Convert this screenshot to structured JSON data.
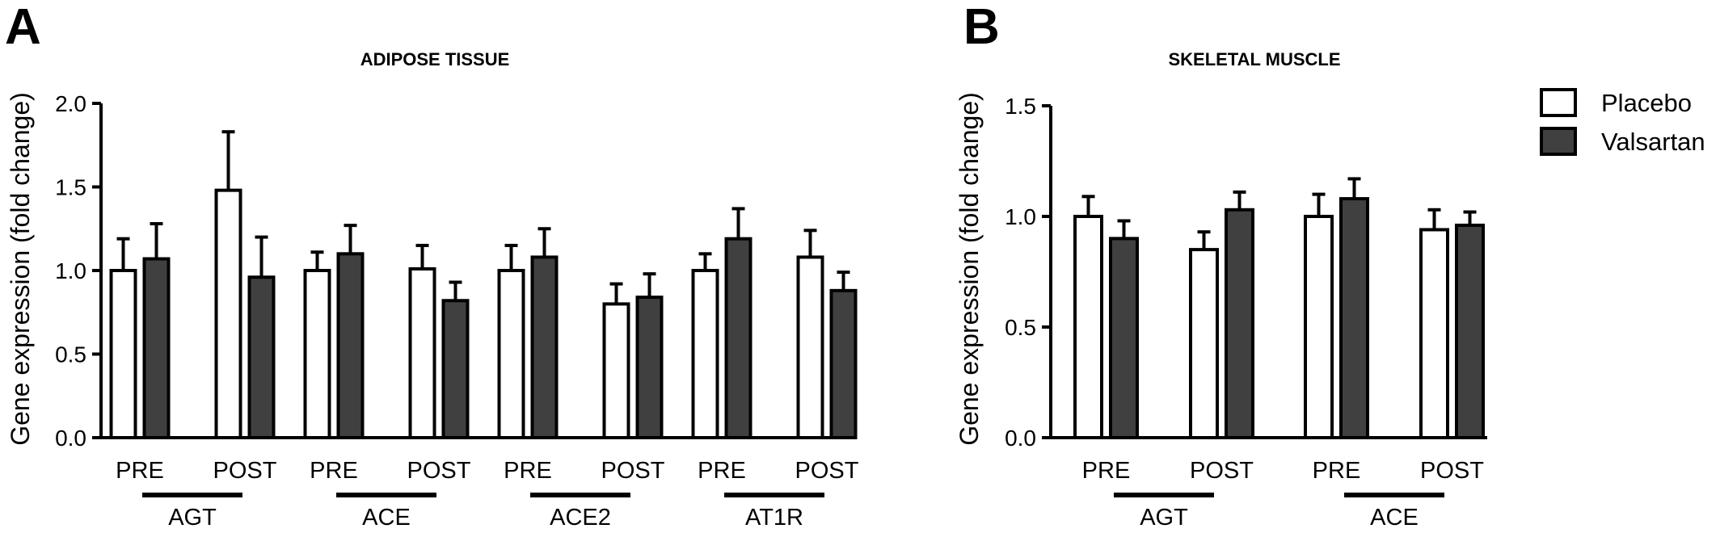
{
  "colors": {
    "placebo": "#ffffff",
    "valsartan": "#404040",
    "stroke": "#000000"
  },
  "legend": {
    "placement": "top-right",
    "items": [
      {
        "label": "Placebo",
        "color": "#ffffff"
      },
      {
        "label": "Valsartan",
        "color": "#404040"
      }
    ]
  },
  "chart_data": [
    {
      "type": "bar",
      "panel": "A",
      "title": "ADIPOSE TISSUE",
      "ylabel": "Gene expression (fold change)",
      "ylim": [
        0,
        2.0
      ],
      "yticks": [
        "0.0",
        "0.5",
        "1.0",
        "1.5",
        "2.0"
      ],
      "error_bars": "upper",
      "groups": [
        {
          "gene": "AGT",
          "timepoints": [
            {
              "label": "PRE",
              "placebo": {
                "value": 1.0,
                "error": 0.19
              },
              "valsartan": {
                "value": 1.07,
                "error": 0.21
              }
            },
            {
              "label": "POST",
              "placebo": {
                "value": 1.48,
                "error": 0.35
              },
              "valsartan": {
                "value": 0.96,
                "error": 0.24
              }
            }
          ]
        },
        {
          "gene": "ACE",
          "timepoints": [
            {
              "label": "PRE",
              "placebo": {
                "value": 1.0,
                "error": 0.11
              },
              "valsartan": {
                "value": 1.1,
                "error": 0.17
              }
            },
            {
              "label": "POST",
              "placebo": {
                "value": 1.01,
                "error": 0.14
              },
              "valsartan": {
                "value": 0.82,
                "error": 0.11
              }
            }
          ]
        },
        {
          "gene": "ACE2",
          "timepoints": [
            {
              "label": "PRE",
              "placebo": {
                "value": 1.0,
                "error": 0.15
              },
              "valsartan": {
                "value": 1.08,
                "error": 0.17
              }
            },
            {
              "label": "POST",
              "placebo": {
                "value": 0.8,
                "error": 0.12
              },
              "valsartan": {
                "value": 0.84,
                "error": 0.14
              }
            }
          ]
        },
        {
          "gene": "AT1R",
          "timepoints": [
            {
              "label": "PRE",
              "placebo": {
                "value": 1.0,
                "error": 0.1
              },
              "valsartan": {
                "value": 1.19,
                "error": 0.18
              }
            },
            {
              "label": "POST",
              "placebo": {
                "value": 1.08,
                "error": 0.16
              },
              "valsartan": {
                "value": 0.88,
                "error": 0.11
              }
            }
          ]
        }
      ]
    },
    {
      "type": "bar",
      "panel": "B",
      "title": "SKELETAL MUSCLE",
      "ylabel": "Gene expression (fold change)",
      "ylim": [
        0,
        1.5
      ],
      "yticks": [
        "0.0",
        "0.5",
        "1.0",
        "1.5"
      ],
      "error_bars": "upper",
      "groups": [
        {
          "gene": "AGT",
          "timepoints": [
            {
              "label": "PRE",
              "placebo": {
                "value": 1.0,
                "error": 0.09
              },
              "valsartan": {
                "value": 0.9,
                "error": 0.08
              }
            },
            {
              "label": "POST",
              "placebo": {
                "value": 0.85,
                "error": 0.08
              },
              "valsartan": {
                "value": 1.03,
                "error": 0.08
              }
            }
          ]
        },
        {
          "gene": "ACE",
          "timepoints": [
            {
              "label": "PRE",
              "placebo": {
                "value": 1.0,
                "error": 0.1
              },
              "valsartan": {
                "value": 1.08,
                "error": 0.09
              }
            },
            {
              "label": "POST",
              "placebo": {
                "value": 0.94,
                "error": 0.09
              },
              "valsartan": {
                "value": 0.96,
                "error": 0.06
              }
            }
          ]
        }
      ]
    }
  ]
}
